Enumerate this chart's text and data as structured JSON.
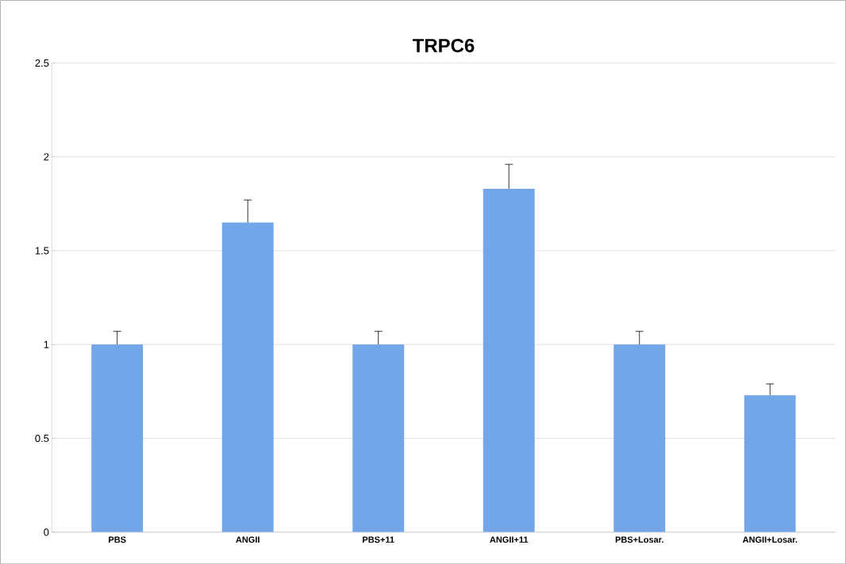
{
  "chart_data": {
    "type": "bar",
    "title": "TRPC6",
    "categories": [
      "PBS",
      "ANGII",
      "PBS+11",
      "ANGII+11",
      "PBS+Losar.",
      "ANGII+Losar."
    ],
    "values": [
      1.0,
      1.65,
      1.0,
      1.83,
      1.0,
      0.73
    ],
    "errors": [
      [
        1.0,
        1.07
      ],
      [
        1.65,
        1.77
      ],
      [
        1.0,
        1.07
      ],
      [
        1.83,
        1.96
      ],
      [
        1.0,
        1.07
      ],
      [
        0.73,
        0.79
      ]
    ],
    "color": "#72a6e8",
    "ylim": [
      0,
      2.5
    ],
    "yticks": [
      0,
      0.5,
      1,
      1.5,
      2,
      2.5
    ],
    "grid": "y"
  }
}
